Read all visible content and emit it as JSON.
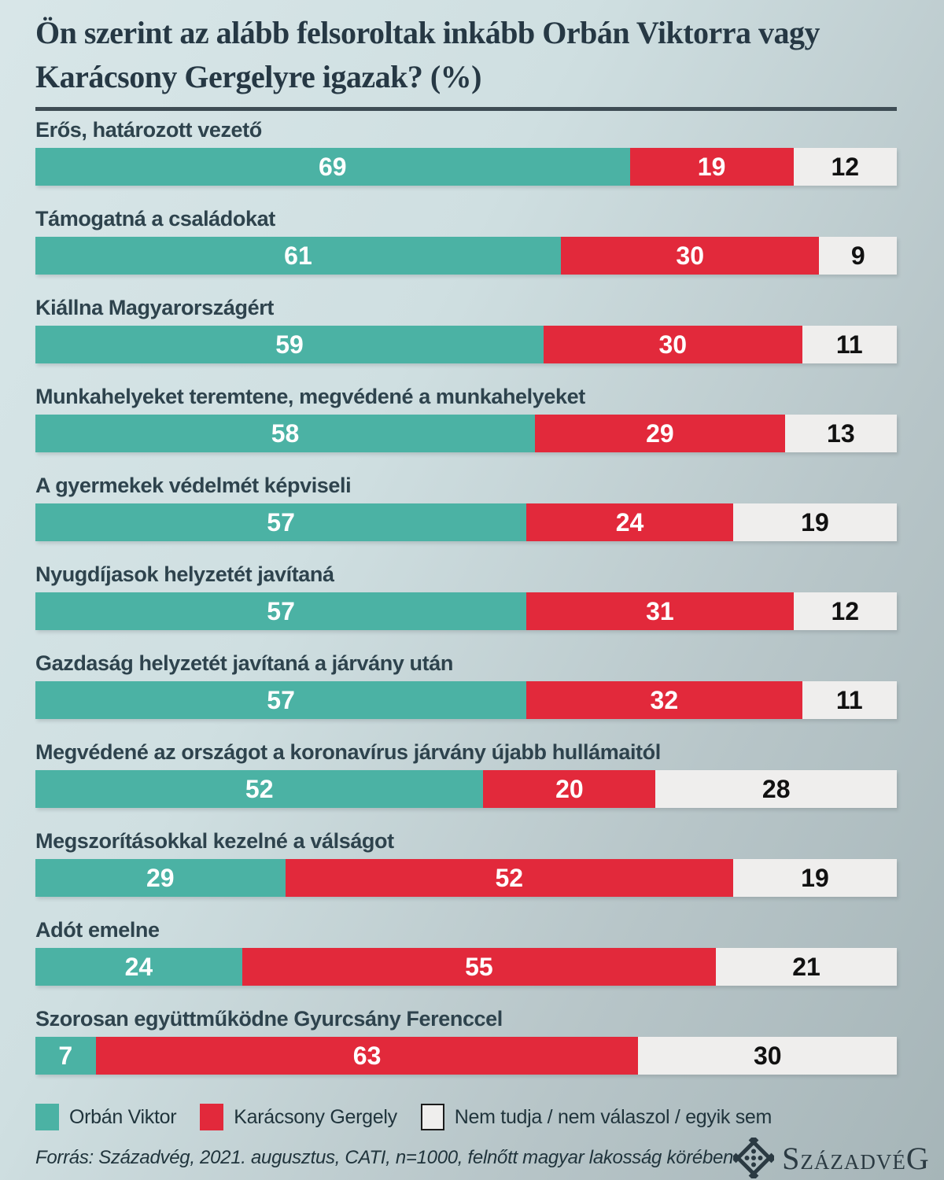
{
  "title": "Ön szerint az alább felsoroltak inkább Orbán Viktorra vagy Karácsony Gergelyre igazak? (%)",
  "chart_data": {
    "type": "bar",
    "stacked": true,
    "orientation": "horizontal",
    "value_labels": "inside",
    "legend_position": "bottom",
    "xlim": [
      0,
      100
    ],
    "categories": [
      "Erős, határozott vezető",
      "Támogatná a családokat",
      "Kiállna Magyarországért",
      "Munkahelyeket teremtene, megvédené a munkahelyeket",
      "A gyermekek védelmét képviseli",
      "Nyugdíjasok helyzetét javítaná",
      "Gazdaság helyzetét javítaná a járvány után",
      "Megvédené az országot a koronavírus járvány újabb hullámaitól",
      "Megszorításokkal kezelné a válságot",
      "Adót emelne",
      "Szorosan együttműködne Gyurcsány Ferenccel"
    ],
    "series": [
      {
        "name": "Orbán Viktor",
        "color": "#4bb2a4",
        "text_color": "#ffffff",
        "values": [
          69,
          61,
          59,
          58,
          57,
          57,
          57,
          52,
          29,
          24,
          7
        ]
      },
      {
        "name": "Karácsony Gergely",
        "color": "#e2293b",
        "text_color": "#ffffff",
        "values": [
          19,
          30,
          30,
          29,
          24,
          31,
          32,
          20,
          52,
          55,
          63
        ]
      },
      {
        "name": "Nem tudja / nem válaszol / egyik sem",
        "color": "#efeeed",
        "text_color": "#111111",
        "values": [
          12,
          9,
          11,
          13,
          19,
          12,
          11,
          28,
          19,
          21,
          30
        ]
      }
    ]
  },
  "footer": {
    "source": "Forrás: Századvég, 2021. augusztus, CATI, n=1000, felnőtt magyar lakosság körében"
  },
  "logo": {
    "lead": "S",
    "mid": "ZÁZADVÉ",
    "tail": "G"
  }
}
